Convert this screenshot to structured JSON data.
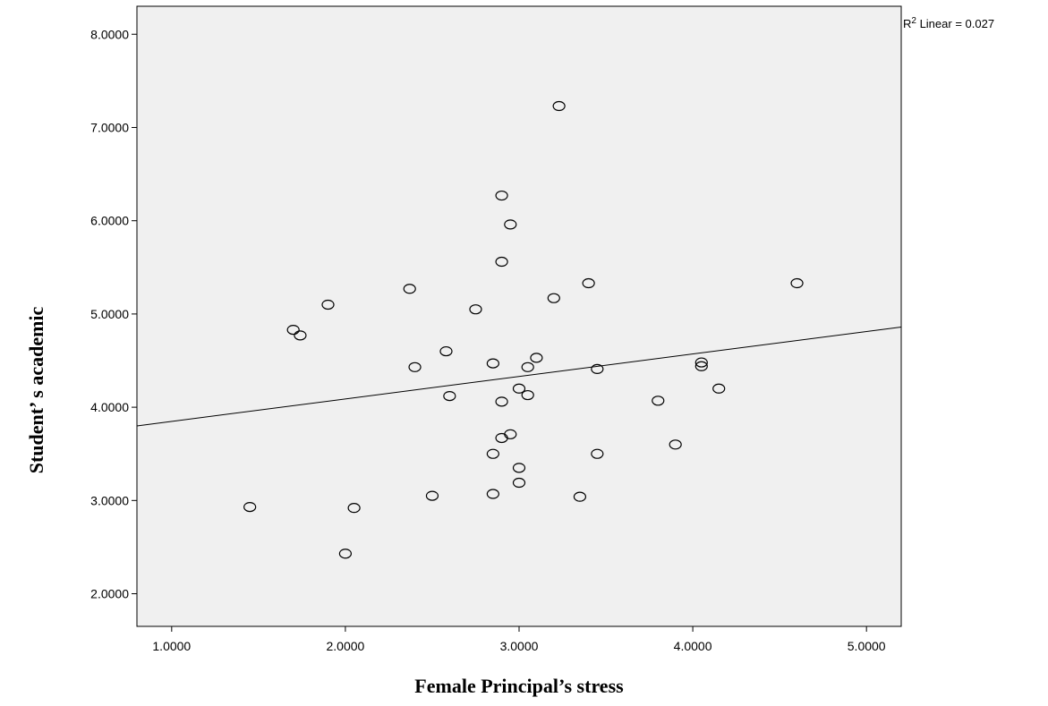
{
  "chart_data": {
    "type": "scatter",
    "title": "",
    "xlabel": "Female Principal’s  stress",
    "ylabel": "Student’  s academic",
    "xlim": [
      0.8,
      5.2
    ],
    "ylim": [
      1.65,
      8.3
    ],
    "x_ticks": [
      1,
      2,
      3,
      4,
      5
    ],
    "x_tick_labels": [
      "1.0000",
      "2.0000",
      "3.0000",
      "4.0000",
      "5.0000"
    ],
    "y_ticks": [
      2,
      3,
      4,
      5,
      6,
      7,
      8
    ],
    "y_tick_labels": [
      "2.0000",
      "3.0000",
      "4.0000",
      "5.0000",
      "6.0000",
      "7.0000",
      "8.0000"
    ],
    "fit_line": {
      "label_prefix": "R",
      "label_sup": "2",
      "label_suffix": " Linear = 0.027",
      "x": [
        0.8,
        5.2
      ],
      "y": [
        3.8,
        4.86
      ]
    },
    "series": [
      {
        "points": [
          [
            1.45,
            2.93
          ],
          [
            1.7,
            4.83
          ],
          [
            1.74,
            4.77
          ],
          [
            1.9,
            5.1
          ],
          [
            2.0,
            2.43
          ],
          [
            2.05,
            2.92
          ],
          [
            2.37,
            5.27
          ],
          [
            2.4,
            4.43
          ],
          [
            2.5,
            3.05
          ],
          [
            2.58,
            4.6
          ],
          [
            2.6,
            4.12
          ],
          [
            2.75,
            5.05
          ],
          [
            2.85,
            4.47
          ],
          [
            2.85,
            3.5
          ],
          [
            2.85,
            3.07
          ],
          [
            2.9,
            6.27
          ],
          [
            2.9,
            5.56
          ],
          [
            2.9,
            4.06
          ],
          [
            2.9,
            3.67
          ],
          [
            2.95,
            5.96
          ],
          [
            2.95,
            3.71
          ],
          [
            3.0,
            4.2
          ],
          [
            3.0,
            3.35
          ],
          [
            3.0,
            3.19
          ],
          [
            3.05,
            4.43
          ],
          [
            3.05,
            4.13
          ],
          [
            3.1,
            4.53
          ],
          [
            3.2,
            5.17
          ],
          [
            3.23,
            7.23
          ],
          [
            3.35,
            3.04
          ],
          [
            3.4,
            5.33
          ],
          [
            3.45,
            4.41
          ],
          [
            3.45,
            3.5
          ],
          [
            3.8,
            4.07
          ],
          [
            3.9,
            3.6
          ],
          [
            4.05,
            4.48
          ],
          [
            4.05,
            4.44
          ],
          [
            4.15,
            4.2
          ],
          [
            4.6,
            5.33
          ]
        ]
      }
    ]
  }
}
